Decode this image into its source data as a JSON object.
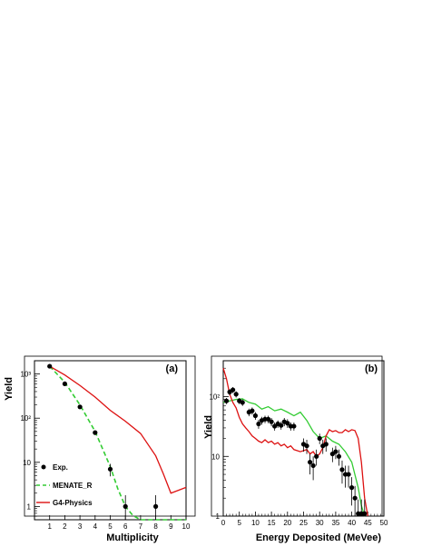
{
  "chart_data": [
    {
      "type": "line",
      "panel_label": "(a)",
      "xlabel": "Multiplicity",
      "ylabel": "Yield",
      "x_scale": "linear",
      "y_scale": "log",
      "xlim": [
        0,
        10
      ],
      "ylim": [
        0.5,
        2000
      ],
      "x_ticks": [
        1,
        2,
        3,
        4,
        5,
        6,
        7,
        8,
        9,
        10
      ],
      "y_ticks": [
        {
          "value": 1,
          "label": "1"
        },
        {
          "value": 10,
          "label": "10"
        },
        {
          "value": 100,
          "label": "10²"
        },
        {
          "value": 1000,
          "label": "10³"
        }
      ],
      "legend": [
        "Exp.",
        "MENATE_R",
        "G4-Physics"
      ],
      "legend_position": "bottom-left",
      "series": [
        {
          "name": "Exp.",
          "style": "points",
          "color": "#000000",
          "points": [
            {
              "x": 1,
              "y": 1500,
              "err": 60
            },
            {
              "x": 2,
              "y": 600,
              "err": 30
            },
            {
              "x": 3,
              "y": 180,
              "err": 12
            },
            {
              "x": 4,
              "y": 47,
              "err": 5
            },
            {
              "x": 5,
              "y": 7,
              "err": 2.2
            },
            {
              "x": 6,
              "y": 1,
              "err": 0.8
            },
            {
              "x": 8,
              "y": 1,
              "err": 0.8
            }
          ]
        },
        {
          "name": "MENATE_R",
          "style": "dashed",
          "color": "#33cc33",
          "points": [
            [
              1,
              1500
            ],
            [
              2,
              650
            ],
            [
              3,
              200
            ],
            [
              4,
              50
            ],
            [
              5,
              8
            ],
            [
              5.5,
              2.5
            ],
            [
              6,
              1
            ],
            [
              6.5,
              0.62
            ],
            [
              7,
              0.5
            ],
            [
              10,
              0.5
            ]
          ]
        },
        {
          "name": "G4-Physics",
          "style": "solid",
          "color": "#dd1111",
          "points": [
            [
              1,
              1500
            ],
            [
              2,
              950
            ],
            [
              3,
              550
            ],
            [
              4,
              300
            ],
            [
              5,
              150
            ],
            [
              6,
              85
            ],
            [
              7,
              45
            ],
            [
              8,
              14
            ],
            [
              8.5,
              5.5
            ],
            [
              9,
              2
            ],
            [
              10,
              2.7
            ]
          ]
        }
      ]
    },
    {
      "type": "line",
      "panel_label": "(b)",
      "xlabel": "Energy Deposited (MeVee)",
      "ylabel": "Yield",
      "x_scale": "linear",
      "y_scale": "log",
      "xlim": [
        0,
        50
      ],
      "ylim": [
        1,
        400
      ],
      "x_ticks": [
        0,
        5,
        10,
        15,
        20,
        25,
        30,
        35,
        40,
        45,
        50
      ],
      "y_ticks": [
        {
          "value": 1,
          "label": "1"
        },
        {
          "value": 10,
          "label": "10"
        },
        {
          "value": 100,
          "label": "10²"
        }
      ],
      "series": [
        {
          "name": "Exp.",
          "style": "points",
          "color": "#000000",
          "points": [
            {
              "x": 1,
              "y": 85,
              "err": 10
            },
            {
              "x": 2,
              "y": 120,
              "err": 14
            },
            {
              "x": 3,
              "y": 130,
              "err": 15
            },
            {
              "x": 4,
              "y": 110,
              "err": 13
            },
            {
              "x": 5,
              "y": 85,
              "err": 10
            },
            {
              "x": 6,
              "y": 80,
              "err": 10
            },
            {
              "x": 8,
              "y": 55,
              "err": 8
            },
            {
              "x": 9,
              "y": 58,
              "err": 8
            },
            {
              "x": 10,
              "y": 48,
              "err": 7
            },
            {
              "x": 11,
              "y": 35,
              "err": 6
            },
            {
              "x": 12,
              "y": 40,
              "err": 6
            },
            {
              "x": 13,
              "y": 42,
              "err": 6
            },
            {
              "x": 14,
              "y": 42,
              "err": 6
            },
            {
              "x": 15,
              "y": 38,
              "err": 6
            },
            {
              "x": 16,
              "y": 32,
              "err": 5
            },
            {
              "x": 17,
              "y": 35,
              "err": 5
            },
            {
              "x": 18,
              "y": 33,
              "err": 5
            },
            {
              "x": 19,
              "y": 38,
              "err": 6
            },
            {
              "x": 20,
              "y": 36,
              "err": 6
            },
            {
              "x": 21,
              "y": 32,
              "err": 5
            },
            {
              "x": 22,
              "y": 32,
              "err": 5
            },
            {
              "x": 25,
              "y": 16,
              "err": 4
            },
            {
              "x": 26,
              "y": 15,
              "err": 4
            },
            {
              "x": 27,
              "y": 8,
              "err": 3
            },
            {
              "x": 28,
              "y": 7,
              "err": 3
            },
            {
              "x": 29,
              "y": 10,
              "err": 3
            },
            {
              "x": 30,
              "y": 20,
              "err": 4
            },
            {
              "x": 31,
              "y": 15,
              "err": 4
            },
            {
              "x": 32,
              "y": 16,
              "err": 4
            },
            {
              "x": 34,
              "y": 11,
              "err": 3
            },
            {
              "x": 35,
              "y": 12,
              "err": 3
            },
            {
              "x": 36,
              "y": 10,
              "err": 3
            },
            {
              "x": 37,
              "y": 6,
              "err": 2.5
            },
            {
              "x": 38,
              "y": 5,
              "err": 2
            },
            {
              "x": 39,
              "y": 5,
              "err": 2
            },
            {
              "x": 40,
              "y": 3,
              "err": 1.5
            },
            {
              "x": 41,
              "y": 2,
              "err": 1.2
            },
            {
              "x": 42,
              "y": 1.1,
              "err": 0.8
            },
            {
              "x": 43,
              "y": 1.1,
              "err": 0.8
            },
            {
              "x": 44,
              "y": 1.1,
              "err": 0.8
            }
          ]
        },
        {
          "name": "MENATE_R",
          "style": "solid",
          "color": "#33cc33",
          "points": [
            [
              0,
              80
            ],
            [
              2,
              85
            ],
            [
              4,
              90
            ],
            [
              6,
              92
            ],
            [
              8,
              80
            ],
            [
              10,
              75
            ],
            [
              12,
              62
            ],
            [
              14,
              68
            ],
            [
              16,
              58
            ],
            [
              18,
              62
            ],
            [
              20,
              55
            ],
            [
              22,
              48
            ],
            [
              24,
              55
            ],
            [
              26,
              40
            ],
            [
              28,
              26
            ],
            [
              30,
              20
            ],
            [
              32,
              22
            ],
            [
              34,
              18
            ],
            [
              36,
              16
            ],
            [
              38,
              12
            ],
            [
              40,
              8
            ],
            [
              42,
              3
            ],
            [
              43,
              1.5
            ],
            [
              44,
              1
            ]
          ]
        },
        {
          "name": "G4-Physics",
          "style": "solid",
          "color": "#dd1111",
          "points": [
            [
              0,
              300
            ],
            [
              1,
              200
            ],
            [
              2,
              110
            ],
            [
              3,
              80
            ],
            [
              4,
              65
            ],
            [
              5,
              45
            ],
            [
              6,
              35
            ],
            [
              7,
              30
            ],
            [
              8,
              26
            ],
            [
              9,
              22
            ],
            [
              10,
              20
            ],
            [
              11,
              18
            ],
            [
              12,
              17
            ],
            [
              13,
              19
            ],
            [
              14,
              17
            ],
            [
              15,
              18
            ],
            [
              16,
              16
            ],
            [
              17,
              17
            ],
            [
              18,
              15
            ],
            [
              19,
              16
            ],
            [
              20,
              14
            ],
            [
              21,
              15
            ],
            [
              22,
              13
            ],
            [
              24,
              12
            ],
            [
              26,
              13
            ],
            [
              27,
              11
            ],
            [
              28,
              12
            ],
            [
              29,
              10
            ],
            [
              30,
              11
            ],
            [
              31,
              14
            ],
            [
              32,
              22
            ],
            [
              33,
              28
            ],
            [
              34,
              26
            ],
            [
              35,
              27
            ],
            [
              36,
              25
            ],
            [
              37,
              25
            ],
            [
              38,
              28
            ],
            [
              39,
              26
            ],
            [
              40,
              28
            ],
            [
              41,
              27
            ],
            [
              42,
              20
            ],
            [
              43,
              8
            ],
            [
              44,
              2
            ],
            [
              45,
              1
            ]
          ]
        }
      ]
    }
  ]
}
